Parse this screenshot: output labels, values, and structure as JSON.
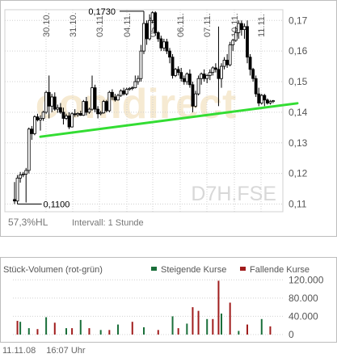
{
  "colors": {
    "grid": "#d0d0d0",
    "axis_text": "#555555",
    "candle": "#000000",
    "trendline": "#33dd33",
    "watermark": "#f3e3c4",
    "vol_up": "#1a6f3a",
    "vol_down": "#a01c1c",
    "border": "#bdbdbd"
  },
  "watermark": {
    "logo": "comdirect",
    "symbol": "D7H.FSE"
  },
  "info_bar": {
    "range": "57,3%HL",
    "interval": "Intervall: 1 Stunde"
  },
  "volume_panel": {
    "title": "Stück-Volumen (rot-grün)",
    "legend_up": "Steigende Kurse",
    "legend_down": "Fallende Kurse"
  },
  "footer": {
    "date": "11.11.08",
    "time": "16:07 Uhr"
  },
  "chart_data": [
    {
      "type": "candlestick",
      "x_tick_labels": [
        "30.10.",
        "31.10.",
        "03.11.",
        "04.11.",
        "05.11.",
        "06.11.",
        "07.11.",
        "10.11.",
        "11.11."
      ],
      "y_tick_labels": [
        "0,17",
        "0,16",
        "0,15",
        "0,14",
        "0,13",
        "0,12",
        "0,11"
      ],
      "ylim": [
        0.1075,
        0.1735
      ],
      "y_ticks": [
        0.17,
        0.16,
        0.15,
        0.14,
        0.13,
        0.12,
        0.11
      ],
      "grid": true,
      "annotations": [
        {
          "text": "0,1730",
          "value": 0.173,
          "bar": 45,
          "side": "left"
        },
        {
          "text": "0,1100",
          "value": 0.11,
          "bar": 1,
          "side": "right"
        }
      ],
      "trendline": {
        "start": {
          "bar": 9,
          "value": 0.132
        },
        "end": {
          "bar": 90,
          "value": 0.1424
        }
      },
      "bars": [
        [
          0.1115,
          0.1172,
          0.11,
          0.111
        ],
        [
          0.111,
          0.1195,
          0.11,
          0.1185
        ],
        [
          0.1185,
          0.1205,
          0.117,
          0.1195
        ],
        [
          0.1195,
          0.1205,
          0.1188,
          0.1198
        ],
        [
          0.1198,
          0.1218,
          0.1105,
          0.121
        ],
        [
          0.121,
          0.135,
          0.12,
          0.1345
        ],
        [
          0.1345,
          0.1355,
          0.131,
          0.133
        ],
        [
          0.133,
          0.139,
          0.1325,
          0.1385
        ],
        [
          0.1385,
          0.1395,
          0.137,
          0.1375
        ],
        [
          0.1375,
          0.139,
          0.134,
          0.138
        ],
        [
          0.138,
          0.1405,
          0.1372,
          0.14
        ],
        [
          0.14,
          0.147,
          0.1395,
          0.1465
        ],
        [
          0.1465,
          0.152,
          0.138,
          0.142
        ],
        [
          0.142,
          0.146,
          0.14,
          0.145
        ],
        [
          0.145,
          0.1465,
          0.1405,
          0.141
        ],
        [
          0.141,
          0.1425,
          0.1398,
          0.1415
        ],
        [
          0.1415,
          0.143,
          0.1395,
          0.14
        ],
        [
          0.14,
          0.1415,
          0.136,
          0.138
        ],
        [
          0.138,
          0.1395,
          0.1375,
          0.1388
        ],
        [
          0.1388,
          0.14,
          0.1345,
          0.1352
        ],
        [
          0.1352,
          0.14,
          0.135,
          0.1395
        ],
        [
          0.1395,
          0.141,
          0.1385,
          0.1392
        ],
        [
          0.1392,
          0.14,
          0.1385,
          0.1396
        ],
        [
          0.1396,
          0.1405,
          0.1388,
          0.139
        ],
        [
          0.139,
          0.144,
          0.1388,
          0.1435
        ],
        [
          0.1435,
          0.145,
          0.139,
          0.14
        ],
        [
          0.14,
          0.1415,
          0.1395,
          0.141
        ],
        [
          0.141,
          0.152,
          0.1405,
          0.148
        ],
        [
          0.148,
          0.149,
          0.14,
          0.141
        ],
        [
          0.141,
          0.142,
          0.138,
          0.1395
        ],
        [
          0.1395,
          0.1405,
          0.139,
          0.1398
        ],
        [
          0.1398,
          0.144,
          0.1395,
          0.1435
        ],
        [
          0.1435,
          0.144,
          0.14,
          0.1405
        ],
        [
          0.1405,
          0.147,
          0.14,
          0.1465
        ],
        [
          0.1465,
          0.1475,
          0.144,
          0.145
        ],
        [
          0.145,
          0.146,
          0.1435,
          0.144
        ],
        [
          0.144,
          0.146,
          0.1438,
          0.1455
        ],
        [
          0.1455,
          0.1475,
          0.145,
          0.147
        ],
        [
          0.147,
          0.148,
          0.1455,
          0.146
        ],
        [
          0.146,
          0.148,
          0.1455,
          0.1475
        ],
        [
          0.1475,
          0.1482,
          0.147,
          0.1478
        ],
        [
          0.1478,
          0.1485,
          0.1472,
          0.148
        ],
        [
          0.148,
          0.152,
          0.1478,
          0.15
        ],
        [
          0.15,
          0.152,
          0.149,
          0.151
        ],
        [
          0.151,
          0.162,
          0.15,
          0.16
        ],
        [
          0.16,
          0.173,
          0.159,
          0.169
        ],
        [
          0.169,
          0.17,
          0.162,
          0.164
        ],
        [
          0.164,
          0.172,
          0.1635,
          0.17
        ],
        [
          0.17,
          0.173,
          0.169,
          0.1725
        ],
        [
          0.1725,
          0.173,
          0.165,
          0.166
        ],
        [
          0.166,
          0.1665,
          0.163,
          0.164
        ],
        [
          0.164,
          0.165,
          0.16,
          0.161
        ],
        [
          0.161,
          0.164,
          0.16,
          0.163
        ],
        [
          0.163,
          0.164,
          0.159,
          0.16
        ],
        [
          0.16,
          0.161,
          0.156,
          0.158
        ],
        [
          0.158,
          0.159,
          0.151,
          0.152
        ],
        [
          0.152,
          0.1545,
          0.1515,
          0.154
        ],
        [
          0.154,
          0.155,
          0.152,
          0.153
        ],
        [
          0.153,
          0.1545,
          0.15,
          0.151
        ],
        [
          0.151,
          0.152,
          0.149,
          0.15
        ],
        [
          0.15,
          0.153,
          0.149,
          0.1525
        ],
        [
          0.1525,
          0.154,
          0.148,
          0.149
        ],
        [
          0.149,
          0.15,
          0.14,
          0.142
        ],
        [
          0.142,
          0.147,
          0.1415,
          0.146
        ],
        [
          0.146,
          0.152,
          0.1455,
          0.151
        ],
        [
          0.151,
          0.153,
          0.149,
          0.1525
        ],
        [
          0.1525,
          0.154,
          0.15,
          0.151
        ],
        [
          0.151,
          0.1525,
          0.1495,
          0.152
        ],
        [
          0.152,
          0.154,
          0.1505,
          0.153
        ],
        [
          0.153,
          0.155,
          0.152,
          0.1545
        ],
        [
          0.1545,
          0.156,
          0.153,
          0.154
        ],
        [
          0.154,
          0.168,
          0.142,
          0.151
        ],
        [
          0.151,
          0.156,
          0.148,
          0.155
        ],
        [
          0.155,
          0.158,
          0.154,
          0.157
        ],
        [
          0.157,
          0.159,
          0.1545,
          0.1555
        ],
        [
          0.1555,
          0.163,
          0.155,
          0.162
        ],
        [
          0.162,
          0.164,
          0.16,
          0.1635
        ],
        [
          0.1635,
          0.168,
          0.163,
          0.166
        ],
        [
          0.166,
          0.17,
          0.164,
          0.169
        ],
        [
          0.169,
          0.17,
          0.165,
          0.167
        ],
        [
          0.167,
          0.169,
          0.164,
          0.168
        ],
        [
          0.168,
          0.17,
          0.156,
          0.158
        ],
        [
          0.158,
          0.159,
          0.152,
          0.154
        ],
        [
          0.154,
          0.1545,
          0.15,
          0.151
        ],
        [
          0.151,
          0.152,
          0.145,
          0.146
        ],
        [
          0.146,
          0.148,
          0.142,
          0.143
        ],
        [
          0.143,
          0.146,
          0.1425,
          0.1455
        ],
        [
          0.1455,
          0.146,
          0.142,
          0.144
        ],
        [
          0.144,
          0.1445,
          0.1425,
          0.143
        ],
        [
          0.143,
          0.144,
          0.1425,
          0.1435
        ],
        [
          0.1435,
          0.144,
          0.143,
          0.1438
        ]
      ]
    },
    {
      "type": "bar",
      "title": "Stück-Volumen (rot-grün)",
      "y_tick_labels": [
        "120.000",
        "80.000",
        "40.000",
        "0"
      ],
      "y_ticks": [
        120000,
        80000,
        40000,
        0
      ],
      "ylim": [
        0,
        124000
      ],
      "series": [
        {
          "name": "Steigende Kurse",
          "color": "#1a6f3a",
          "bars": [
            [
              2,
              28000
            ],
            [
              5,
              14000
            ],
            [
              11,
              38000
            ],
            [
              18,
              14000
            ],
            [
              23,
              32000
            ],
            [
              30,
              10000
            ],
            [
              36,
              22000
            ],
            [
              45,
              16000
            ],
            [
              55,
              40000
            ],
            [
              60,
              24000
            ],
            [
              67,
              34000
            ],
            [
              72,
              46000
            ],
            [
              78,
              8000
            ],
            [
              86,
              34000
            ]
          ]
        },
        {
          "name": "Fallende Kurse",
          "color": "#a01c1c",
          "bars": [
            [
              1,
              30000
            ],
            [
              8,
              12000
            ],
            [
              14,
              26000
            ],
            [
              20,
              14000
            ],
            [
              26,
              14000
            ],
            [
              33,
              10000
            ],
            [
              41,
              28000
            ],
            [
              50,
              10000
            ],
            [
              57,
              14000
            ],
            [
              62,
              60000
            ],
            [
              64,
              52000
            ],
            [
              69,
              34000
            ],
            [
              71,
              118000
            ],
            [
              75,
              70000
            ],
            [
              81,
              22000
            ],
            [
              89,
              18000
            ]
          ]
        }
      ]
    }
  ]
}
